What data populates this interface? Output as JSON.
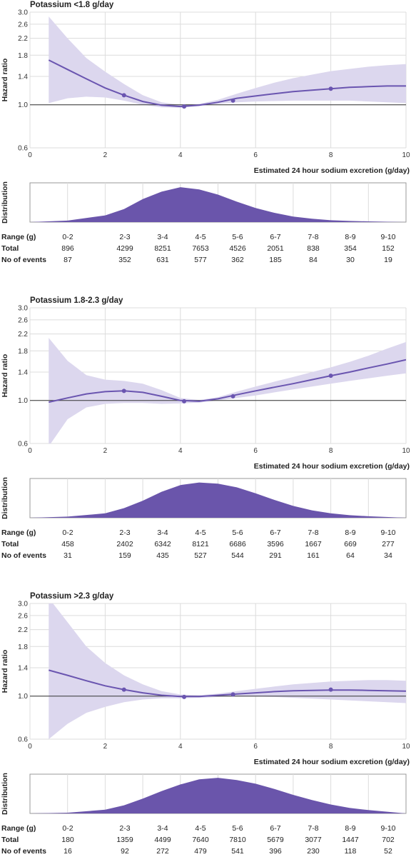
{
  "chart_data": [
    {
      "type": "line",
      "title": "Potassium <1.8 g/day",
      "ylabel": "Hazard ratio",
      "xlabel": "Estimated 24 hour sodium excretion (g/day)",
      "xlim": [
        0,
        10
      ],
      "ylim": [
        0.6,
        3.0
      ],
      "yscale": "log",
      "xticks": [
        "0",
        "2",
        "4",
        "6",
        "8",
        "10"
      ],
      "yticks": [
        "0.6",
        "1.0",
        "1.4",
        "1.8",
        "2.2",
        "2.6",
        "3.0"
      ],
      "reference_line": 1.0,
      "colors": {
        "line": "#6a55b0",
        "band": "#dcd7ee",
        "density": "#6a55ab"
      },
      "curve": {
        "x": [
          0.5,
          1,
          1.5,
          2,
          2.5,
          3,
          3.5,
          4,
          4.5,
          5,
          5.5,
          6,
          6.5,
          7,
          7.5,
          8,
          8.5,
          9,
          9.5,
          10
        ],
        "y": [
          1.7,
          1.52,
          1.36,
          1.22,
          1.12,
          1.04,
          0.995,
          0.98,
          0.995,
          1.03,
          1.08,
          1.11,
          1.14,
          1.17,
          1.19,
          1.21,
          1.23,
          1.24,
          1.25,
          1.25
        ],
        "lower": [
          1.02,
          1.08,
          1.1,
          1.09,
          1.05,
          1.0,
          0.97,
          0.965,
          0.985,
          1.01,
          1.03,
          1.04,
          1.045,
          1.05,
          1.05,
          1.05,
          1.05,
          1.04,
          1.03,
          1.02
        ],
        "upper": [
          2.85,
          2.2,
          1.74,
          1.48,
          1.28,
          1.12,
          1.03,
          1.0,
          1.01,
          1.06,
          1.14,
          1.22,
          1.3,
          1.37,
          1.43,
          1.49,
          1.53,
          1.57,
          1.6,
          1.62
        ]
      },
      "points": {
        "x": [
          2.5,
          4.1,
          5.4,
          8.0
        ],
        "y": [
          1.12,
          0.98,
          1.05,
          1.21
        ]
      },
      "distribution": {
        "label": "Distribution",
        "x": [
          0,
          1,
          2,
          2.5,
          3,
          3.5,
          4,
          4.5,
          5,
          5.5,
          6,
          6.5,
          7,
          7.5,
          8,
          8.5,
          9,
          10
        ],
        "density": [
          0.0,
          0.04,
          0.18,
          0.35,
          0.62,
          0.82,
          0.94,
          0.88,
          0.74,
          0.55,
          0.38,
          0.25,
          0.15,
          0.09,
          0.05,
          0.03,
          0.02,
          0.0
        ]
      },
      "table": {
        "row_labels": [
          "Range (g)",
          "Total",
          "No of events"
        ],
        "ranges": [
          "0-2",
          "2-3",
          "3-4",
          "4-5",
          "5-6",
          "6-7",
          "7-8",
          "8-9",
          "9-10"
        ],
        "total": [
          "896",
          "4299",
          "8251",
          "7653",
          "4526",
          "2051",
          "838",
          "354",
          "152"
        ],
        "events": [
          "87",
          "352",
          "631",
          "577",
          "362",
          "185",
          "84",
          "30",
          "19"
        ]
      }
    },
    {
      "type": "line",
      "title": "Potassium 1.8-2.3 g/day",
      "ylabel": "Hazard ratio",
      "xlabel": "Estimated 24 hour sodium excretion (g/day)",
      "xlim": [
        0,
        10
      ],
      "ylim": [
        0.6,
        3.0
      ],
      "yscale": "log",
      "xticks": [
        "0",
        "2",
        "4",
        "6",
        "8",
        "10"
      ],
      "yticks": [
        "0.6",
        "1.0",
        "1.4",
        "1.8",
        "2.2",
        "2.6",
        "3.0"
      ],
      "reference_line": 1.0,
      "colors": {
        "line": "#6a55b0",
        "band": "#dcd7ee",
        "density": "#6a55ab"
      },
      "curve": {
        "x": [
          0.5,
          1,
          1.5,
          2,
          2.5,
          3,
          3.5,
          4,
          4.5,
          5,
          5.5,
          6,
          6.5,
          7,
          7.5,
          8,
          8.5,
          9,
          9.5,
          10
        ],
        "y": [
          0.98,
          1.03,
          1.08,
          1.11,
          1.12,
          1.1,
          1.05,
          1.0,
          0.99,
          1.02,
          1.07,
          1.12,
          1.17,
          1.22,
          1.28,
          1.34,
          1.4,
          1.47,
          1.54,
          1.62
        ],
        "lower": [
          0.58,
          0.8,
          0.92,
          0.96,
          0.97,
          0.97,
          0.96,
          0.965,
          0.975,
          1.0,
          1.03,
          1.06,
          1.1,
          1.14,
          1.18,
          1.22,
          1.26,
          1.3,
          1.34,
          1.38
        ],
        "upper": [
          2.1,
          1.6,
          1.35,
          1.28,
          1.26,
          1.22,
          1.13,
          1.03,
          1.005,
          1.04,
          1.11,
          1.18,
          1.25,
          1.32,
          1.4,
          1.48,
          1.58,
          1.7,
          1.85,
          2.0
        ]
      },
      "points": {
        "x": [
          2.5,
          4.1,
          5.4,
          8.0
        ],
        "y": [
          1.12,
          0.99,
          1.05,
          1.34
        ]
      },
      "distribution": {
        "label": "Distribution",
        "x": [
          0,
          1,
          2,
          2.5,
          3,
          3.5,
          4,
          4.5,
          5,
          5.5,
          6,
          6.5,
          7,
          7.5,
          8,
          8.5,
          9,
          10
        ],
        "density": [
          0.0,
          0.03,
          0.12,
          0.26,
          0.46,
          0.7,
          0.88,
          0.95,
          0.92,
          0.82,
          0.66,
          0.48,
          0.32,
          0.2,
          0.12,
          0.07,
          0.04,
          0.0
        ]
      },
      "table": {
        "row_labels": [
          "Range (g)",
          "Total",
          "No of events"
        ],
        "ranges": [
          "0-2",
          "2-3",
          "3-4",
          "4-5",
          "5-6",
          "6-7",
          "7-8",
          "8-9",
          "9-10"
        ],
        "total": [
          "458",
          "2402",
          "6342",
          "8121",
          "6686",
          "3596",
          "1667",
          "669",
          "277"
        ],
        "events": [
          "31",
          "159",
          "435",
          "527",
          "544",
          "291",
          "161",
          "64",
          "34"
        ]
      }
    },
    {
      "type": "line",
      "title": "Potassium >2.3 g/day",
      "ylabel": "Hazard ratio",
      "xlabel": "Estimated 24 hour sodium excretion (g/day)",
      "xlim": [
        0,
        10
      ],
      "ylim": [
        0.6,
        3.0
      ],
      "yscale": "log",
      "xticks": [
        "0",
        "2",
        "4",
        "6",
        "8",
        "10"
      ],
      "yticks": [
        "0.6",
        "1.0",
        "1.4",
        "1.8",
        "2.2",
        "2.6",
        "3.0"
      ],
      "reference_line": 1.0,
      "colors": {
        "line": "#6a55b0",
        "band": "#dcd7ee",
        "density": "#6a55ab"
      },
      "curve": {
        "x": [
          0.5,
          1,
          1.5,
          2,
          2.5,
          3,
          3.5,
          4,
          4.5,
          5,
          5.5,
          6,
          6.5,
          7,
          7.5,
          8,
          8.5,
          9,
          9.5,
          10
        ],
        "y": [
          1.36,
          1.28,
          1.2,
          1.13,
          1.08,
          1.04,
          1.01,
          0.995,
          0.995,
          1.01,
          1.025,
          1.04,
          1.055,
          1.065,
          1.07,
          1.075,
          1.075,
          1.07,
          1.065,
          1.06
        ],
        "lower": [
          0.6,
          0.72,
          0.82,
          0.88,
          0.93,
          0.96,
          0.975,
          0.975,
          0.98,
          0.99,
          0.995,
          0.995,
          0.99,
          0.98,
          0.97,
          0.96,
          0.95,
          0.94,
          0.93,
          0.92
        ],
        "upper": [
          3.2,
          2.4,
          1.8,
          1.48,
          1.28,
          1.15,
          1.06,
          1.02,
          1.01,
          1.03,
          1.06,
          1.09,
          1.12,
          1.15,
          1.17,
          1.19,
          1.2,
          1.21,
          1.21,
          1.2
        ]
      },
      "points": {
        "x": [
          2.5,
          4.1,
          5.4,
          8.0
        ],
        "y": [
          1.08,
          0.99,
          1.02,
          1.08
        ]
      },
      "distribution": {
        "label": "Distribution",
        "x": [
          0,
          1,
          2,
          2.5,
          3,
          3.5,
          4,
          4.5,
          5,
          5.5,
          6,
          6.5,
          7,
          7.5,
          8,
          8.5,
          9,
          10
        ],
        "density": [
          0.0,
          0.02,
          0.1,
          0.22,
          0.4,
          0.6,
          0.78,
          0.92,
          0.96,
          0.9,
          0.8,
          0.66,
          0.5,
          0.36,
          0.24,
          0.15,
          0.09,
          0.0
        ]
      },
      "table": {
        "row_labels": [
          "Range (g)",
          "Total",
          "No of events"
        ],
        "ranges": [
          "0-2",
          "2-3",
          "3-4",
          "4-5",
          "5-6",
          "6-7",
          "7-8",
          "8-9",
          "9-10"
        ],
        "total": [
          "180",
          "1359",
          "4499",
          "7640",
          "7810",
          "5679",
          "3077",
          "1447",
          "702"
        ],
        "events": [
          "16",
          "92",
          "272",
          "479",
          "541",
          "396",
          "230",
          "118",
          "52"
        ]
      }
    }
  ]
}
